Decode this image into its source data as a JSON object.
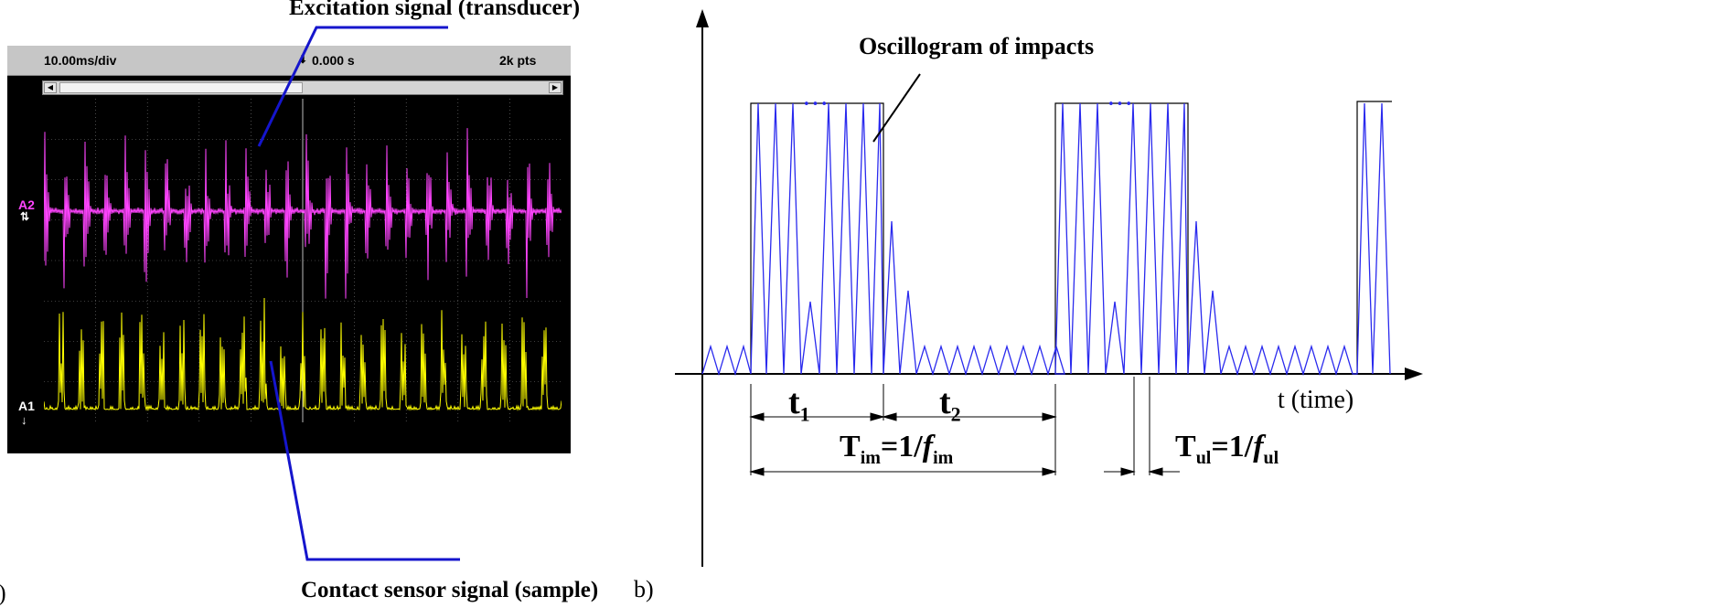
{
  "panel_a": {
    "letter": ")",
    "callout_top": "Excitation signal (transducer)",
    "callout_bottom": "Contact sensor signal (sample)",
    "scope": {
      "timebase": "10.00ms/div",
      "trigger_time": "0.000 s",
      "points": "2k pts",
      "channel_a2": "A2",
      "channel_a1": "A1",
      "colors": {
        "a2": "#ff44ff",
        "a1": "#ffff00",
        "screen": "#000000",
        "grid": "#7a7a7a"
      }
    }
  },
  "panel_b": {
    "letter": "b)",
    "oscillogram_label": "Oscillogram of impacts",
    "axis_label": "t (time)",
    "t1": {
      "main": "t",
      "sub": "1"
    },
    "t2": {
      "main": "t",
      "sub": "2"
    },
    "tim": {
      "pre": "T",
      "pre_sub": "im",
      "eq": "=1/",
      "f": "f",
      "f_sub": "im"
    },
    "tul": {
      "pre": "T",
      "pre_sub": "ul",
      "eq": "=1/",
      "f": "f",
      "f_sub": "ul"
    },
    "ellipsis": "•••",
    "colors": {
      "signal": "#2a2aee",
      "axes": "#000000"
    }
  }
}
